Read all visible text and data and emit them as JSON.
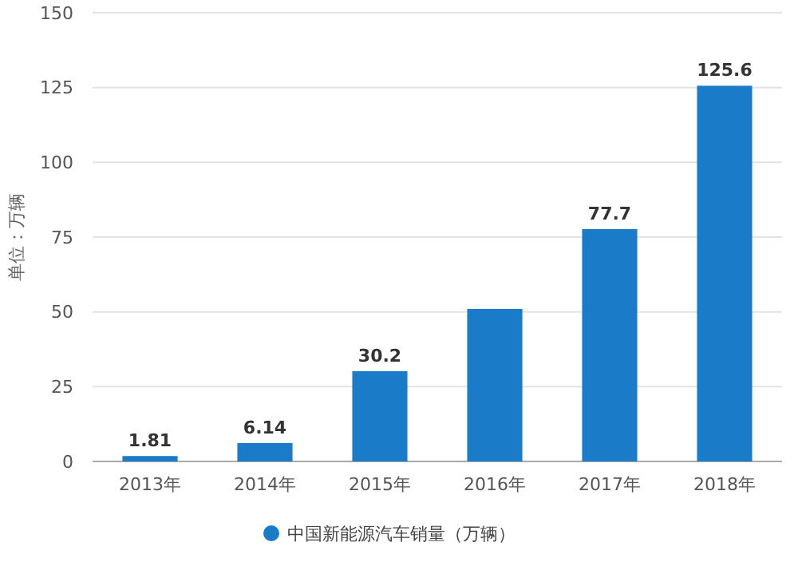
{
  "chart_data": {
    "type": "bar",
    "ylabel": "单位：万辆",
    "categories": [
      "2013年",
      "2014年",
      "2015年",
      "2016年",
      "2017年",
      "2018年"
    ],
    "series": [
      {
        "name": "中国新能源汽车销量（万辆）",
        "color": "#1a7bc9",
        "values": [
          1.81,
          6.14,
          30.2,
          51,
          77.7,
          125.6
        ],
        "value_labels": [
          "1.81",
          "6.14",
          "30.2",
          null,
          "77.7",
          "125.6"
        ]
      }
    ],
    "ylim": [
      0,
      150
    ],
    "yticks": [
      0,
      25,
      50,
      75,
      100,
      125,
      150
    ],
    "grid": "y",
    "legend": "bottom"
  }
}
